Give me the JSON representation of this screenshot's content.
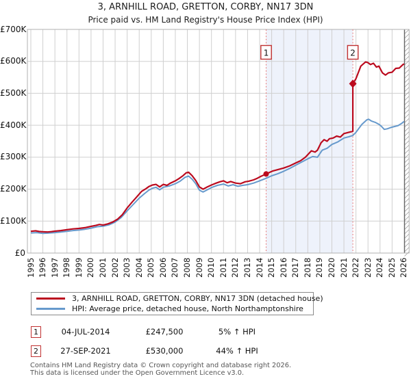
{
  "title": "3, ARNHILL ROAD, GRETTON, CORBY, NN17 3DN",
  "subtitle": "Price paid vs. HM Land Registry's House Price Index (HPI)",
  "chart_data": {
    "type": "line",
    "x_axis": {
      "ticks": [
        1995,
        1996,
        1997,
        1998,
        1999,
        2000,
        2001,
        2002,
        2003,
        2004,
        2005,
        2006,
        2007,
        2008,
        2009,
        2010,
        2011,
        2012,
        2013,
        2014,
        2015,
        2016,
        2017,
        2018,
        2019,
        2020,
        2021,
        2022,
        2023,
        2024,
        2025,
        2026
      ],
      "range": [
        1995,
        2026
      ]
    },
    "y_axis": {
      "tick_values": [
        0,
        100000,
        200000,
        300000,
        400000,
        500000,
        600000,
        700000
      ],
      "tick_labels": [
        "£0",
        "£100K",
        "£200K",
        "£300K",
        "£400K",
        "£500K",
        "£600K",
        "£700K"
      ],
      "range": [
        0,
        700000
      ]
    },
    "grid": true,
    "legend_position": "bottom",
    "shaded_region": {
      "from": 2014.54,
      "to": 2021.74,
      "color": "#eef2fb"
    },
    "colors": {
      "grid": "#cfcfcf",
      "plot_border": "#b0b0b0",
      "right_edge": "#666666",
      "hatch": "#9a9a9a",
      "sale_dash_line": "#e87878",
      "badge_border": "#c03030",
      "property_line": "#bb0a1e",
      "hpi_line": "#6699cc"
    },
    "series": [
      {
        "name": "3, ARNHILL ROAD, GRETTON, CORBY, NN17 3DN (detached house)",
        "color": "#bb0a1e",
        "points": [
          [
            1995,
            68000
          ],
          [
            1995.4,
            69500
          ],
          [
            1995.7,
            67500
          ],
          [
            1996,
            66500
          ],
          [
            1996.4,
            66000
          ],
          [
            1996.7,
            67000
          ],
          [
            1997,
            68500
          ],
          [
            1997.5,
            70500
          ],
          [
            1998,
            73000
          ],
          [
            1998.5,
            75500
          ],
          [
            1999,
            77000
          ],
          [
            1999.5,
            79500
          ],
          [
            2000,
            83500
          ],
          [
            2000.4,
            86500
          ],
          [
            2000.7,
            89500
          ],
          [
            2001,
            87500
          ],
          [
            2001.4,
            91500
          ],
          [
            2001.8,
            97000
          ],
          [
            2002.2,
            106000
          ],
          [
            2002.6,
            120000
          ],
          [
            2003,
            141000
          ],
          [
            2003.4,
            159000
          ],
          [
            2003.8,
            176000
          ],
          [
            2004.2,
            193000
          ],
          [
            2004.5,
            200000
          ],
          [
            2004.8,
            208000
          ],
          [
            2005.1,
            213000
          ],
          [
            2005.4,
            215000
          ],
          [
            2005.7,
            207000
          ],
          [
            2006,
            215000
          ],
          [
            2006.3,
            212000
          ],
          [
            2006.6,
            219000
          ],
          [
            2007,
            226000
          ],
          [
            2007.3,
            233000
          ],
          [
            2007.6,
            241000
          ],
          [
            2007.9,
            251000
          ],
          [
            2008.1,
            253000
          ],
          [
            2008.4,
            242000
          ],
          [
            2008.7,
            227000
          ],
          [
            2009,
            207000
          ],
          [
            2009.3,
            200000
          ],
          [
            2009.6,
            206000
          ],
          [
            2010,
            213000
          ],
          [
            2010.4,
            219000
          ],
          [
            2010.7,
            223000
          ],
          [
            2011,
            226000
          ],
          [
            2011.3,
            220000
          ],
          [
            2011.6,
            224000
          ],
          [
            2012,
            219000
          ],
          [
            2012.4,
            217000
          ],
          [
            2012.8,
            223000
          ],
          [
            2013.1,
            225000
          ],
          [
            2013.5,
            229000
          ],
          [
            2013.8,
            234000
          ],
          [
            2014.1,
            240000
          ],
          [
            2014.54,
            247500
          ],
          [
            2014.8,
            252000
          ],
          [
            2015.1,
            257000
          ],
          [
            2015.5,
            261000
          ],
          [
            2016,
            266000
          ],
          [
            2016.5,
            273000
          ],
          [
            2017,
            282000
          ],
          [
            2017.4,
            289000
          ],
          [
            2017.8,
            300000
          ],
          [
            2018.1,
            312000
          ],
          [
            2018.3,
            320000
          ],
          [
            2018.6,
            316000
          ],
          [
            2018.8,
            322000
          ],
          [
            2019.1,
            345000
          ],
          [
            2019.35,
            355000
          ],
          [
            2019.6,
            350000
          ],
          [
            2019.8,
            358000
          ],
          [
            2020.1,
            360000
          ],
          [
            2020.4,
            366000
          ],
          [
            2020.7,
            363000
          ],
          [
            2021,
            374000
          ],
          [
            2021.3,
            377000
          ],
          [
            2021.74,
            381000
          ],
          [
            2021.74,
            530000
          ],
          [
            2022,
            546000
          ],
          [
            2022.4,
            585000
          ],
          [
            2022.8,
            598000
          ],
          [
            2023,
            596000
          ],
          [
            2023.2,
            590000
          ],
          [
            2023.45,
            594000
          ],
          [
            2023.7,
            582000
          ],
          [
            2023.9,
            585000
          ],
          [
            2024.2,
            564000
          ],
          [
            2024.45,
            557000
          ],
          [
            2024.7,
            564000
          ],
          [
            2025,
            566000
          ],
          [
            2025.3,
            578000
          ],
          [
            2025.6,
            579000
          ],
          [
            2025.9,
            590000
          ],
          [
            2026,
            592000
          ]
        ]
      },
      {
        "name": "HPI: Average price, detached house, North Northamptonshire",
        "color": "#6699cc",
        "points": [
          [
            1995,
            63000
          ],
          [
            1995.5,
            64000
          ],
          [
            1996,
            61500
          ],
          [
            1996.5,
            62500
          ],
          [
            1997,
            64000
          ],
          [
            1997.5,
            66000
          ],
          [
            1998,
            68000
          ],
          [
            1998.5,
            70500
          ],
          [
            1999,
            72000
          ],
          [
            1999.5,
            74500
          ],
          [
            2000,
            78000
          ],
          [
            2000.5,
            82500
          ],
          [
            2001,
            84000
          ],
          [
            2001.5,
            88500
          ],
          [
            2002,
            97000
          ],
          [
            2002.5,
            111000
          ],
          [
            2003,
            132000
          ],
          [
            2003.5,
            152000
          ],
          [
            2004,
            172000
          ],
          [
            2004.4,
            185000
          ],
          [
            2004.8,
            197000
          ],
          [
            2005.1,
            203000
          ],
          [
            2005.4,
            206000
          ],
          [
            2005.7,
            198000
          ],
          [
            2006,
            206000
          ],
          [
            2006.5,
            210000
          ],
          [
            2007,
            217000
          ],
          [
            2007.4,
            225000
          ],
          [
            2007.8,
            237000
          ],
          [
            2008.1,
            241000
          ],
          [
            2008.4,
            231000
          ],
          [
            2008.7,
            217000
          ],
          [
            2009,
            197000
          ],
          [
            2009.3,
            191000
          ],
          [
            2009.6,
            197000
          ],
          [
            2010,
            205000
          ],
          [
            2010.5,
            212000
          ],
          [
            2011,
            216000
          ],
          [
            2011.4,
            210000
          ],
          [
            2011.8,
            214000
          ],
          [
            2012.2,
            209000
          ],
          [
            2012.6,
            212000
          ],
          [
            2013,
            214000
          ],
          [
            2013.5,
            219000
          ],
          [
            2014,
            226000
          ],
          [
            2014.54,
            234000
          ],
          [
            2015,
            242000
          ],
          [
            2015.5,
            248000
          ],
          [
            2016,
            256000
          ],
          [
            2016.5,
            265000
          ],
          [
            2017,
            275000
          ],
          [
            2017.5,
            285000
          ],
          [
            2018,
            295000
          ],
          [
            2018.4,
            302000
          ],
          [
            2018.8,
            300000
          ],
          [
            2019.2,
            322000
          ],
          [
            2019.6,
            328000
          ],
          [
            2020,
            340000
          ],
          [
            2020.5,
            348000
          ],
          [
            2021,
            360000
          ],
          [
            2021.4,
            364000
          ],
          [
            2021.74,
            368000
          ],
          [
            2022,
            378000
          ],
          [
            2022.5,
            403000
          ],
          [
            2022.9,
            417000
          ],
          [
            2023.05,
            419000
          ],
          [
            2023.3,
            413000
          ],
          [
            2023.6,
            409000
          ],
          [
            2023.9,
            403000
          ],
          [
            2024.1,
            397000
          ],
          [
            2024.35,
            387000
          ],
          [
            2024.6,
            389000
          ],
          [
            2024.9,
            393000
          ],
          [
            2025.2,
            396000
          ],
          [
            2025.5,
            399000
          ],
          [
            2025.8,
            406000
          ],
          [
            2026,
            412000
          ]
        ]
      }
    ],
    "sales": [
      {
        "label": "1",
        "year": 2014.54,
        "price": 247500,
        "marker": "circle"
      },
      {
        "label": "2",
        "year": 2021.74,
        "price": 530000,
        "marker": "diamond"
      }
    ]
  },
  "legend": {
    "items": [
      {
        "label": "3, ARNHILL ROAD, GRETTON, CORBY, NN17 3DN (detached house)",
        "color": "#bb0a1e"
      },
      {
        "label": "HPI: Average price, detached house, North Northamptonshire",
        "color": "#6699cc"
      }
    ]
  },
  "annotations": [
    {
      "num": "1",
      "date": "04-JUL-2014",
      "price": "£247,500",
      "hpi": "5% ↑ HPI"
    },
    {
      "num": "2",
      "date": "27-SEP-2021",
      "price": "£530,000",
      "hpi": "44% ↑ HPI"
    }
  ],
  "footer": {
    "line1": "Contains HM Land Registry data © Crown copyright and database right 2026.",
    "line2": "This data is licensed under the Open Government Licence v3.0."
  }
}
